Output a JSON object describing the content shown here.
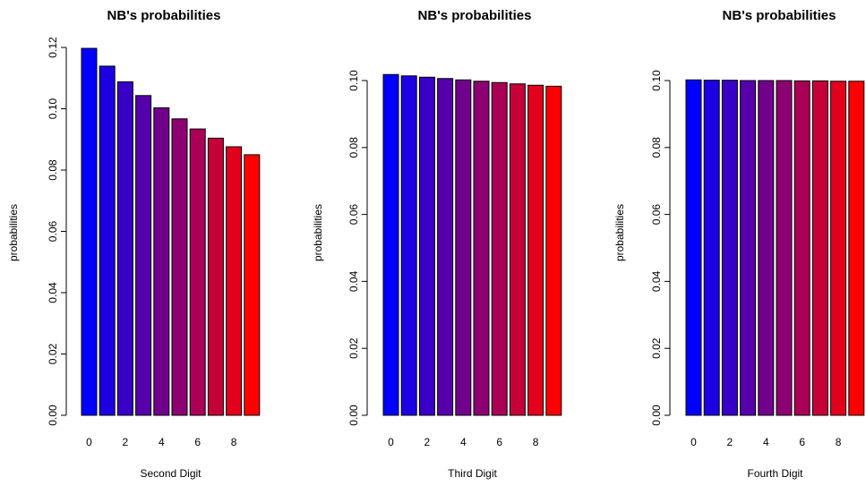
{
  "chart_data": [
    {
      "type": "bar",
      "title": "NB's probabilities",
      "x_label": "Second Digit",
      "y_label": "probabilities",
      "categories": [
        "0",
        null,
        "2",
        null,
        "4",
        null,
        "6",
        null,
        "8",
        null
      ],
      "values": [
        0.1197,
        0.1139,
        0.1088,
        0.1043,
        0.1003,
        0.0967,
        0.0934,
        0.0904,
        0.0876,
        0.085
      ],
      "colors": [
        "#0000FF",
        "#1C00E2",
        "#3800C6",
        "#5500AA",
        "#71008D",
        "#8D0071",
        "#AA0055",
        "#C60038",
        "#E2001C",
        "#FF0000"
      ],
      "ylim": [
        0,
        0.12
      ],
      "yticks": [
        {
          "value": 0,
          "label": "0.00"
        },
        0.02,
        0.04,
        0.06,
        0.08,
        {
          "value": 0.1,
          "label": "0.10"
        },
        0.12
      ]
    },
    {
      "type": "bar",
      "title": "NB's probabilities",
      "x_label": "Third Digit",
      "y_label": "probabilities",
      "categories": [
        "0",
        null,
        "2",
        null,
        "4",
        null,
        "6",
        null,
        "8",
        null
      ],
      "values": [
        0.1018,
        0.1014,
        0.101,
        0.1006,
        0.1002,
        0.0998,
        0.0994,
        0.099,
        0.0986,
        0.0983
      ],
      "colors": [
        "#0000FF",
        "#1C00E2",
        "#3800C6",
        "#5500AA",
        "#71008D",
        "#8D0071",
        "#AA0055",
        "#C60038",
        "#E2001C",
        "#FF0000"
      ],
      "ylim": [
        0,
        0.1
      ],
      "yticks": [
        {
          "value": 0,
          "label": "0.00"
        },
        0.02,
        0.04,
        0.06,
        0.08,
        {
          "value": 0.1,
          "label": "0.10"
        }
      ]
    },
    {
      "type": "bar",
      "title": "NB's probabilities",
      "x_label": "Fourth Digit",
      "y_label": "probabilities",
      "categories": [
        "0",
        null,
        "2",
        null,
        "4",
        null,
        "6",
        null,
        "8",
        null
      ],
      "values": [
        0.1002,
        0.1001,
        0.1001,
        0.1,
        0.1,
        0.1,
        0.0999,
        0.0999,
        0.0998,
        0.0998
      ],
      "colors": [
        "#0000FF",
        "#1C00E2",
        "#3800C6",
        "#5500AA",
        "#71008D",
        "#8D0071",
        "#AA0055",
        "#C60038",
        "#E2001C",
        "#FF0000"
      ],
      "ylim": [
        0,
        0.1
      ],
      "yticks": [
        {
          "value": 0,
          "label": "0.00"
        },
        0.02,
        0.04,
        0.06,
        0.08,
        {
          "value": 0.1,
          "label": "0.10"
        }
      ]
    }
  ]
}
